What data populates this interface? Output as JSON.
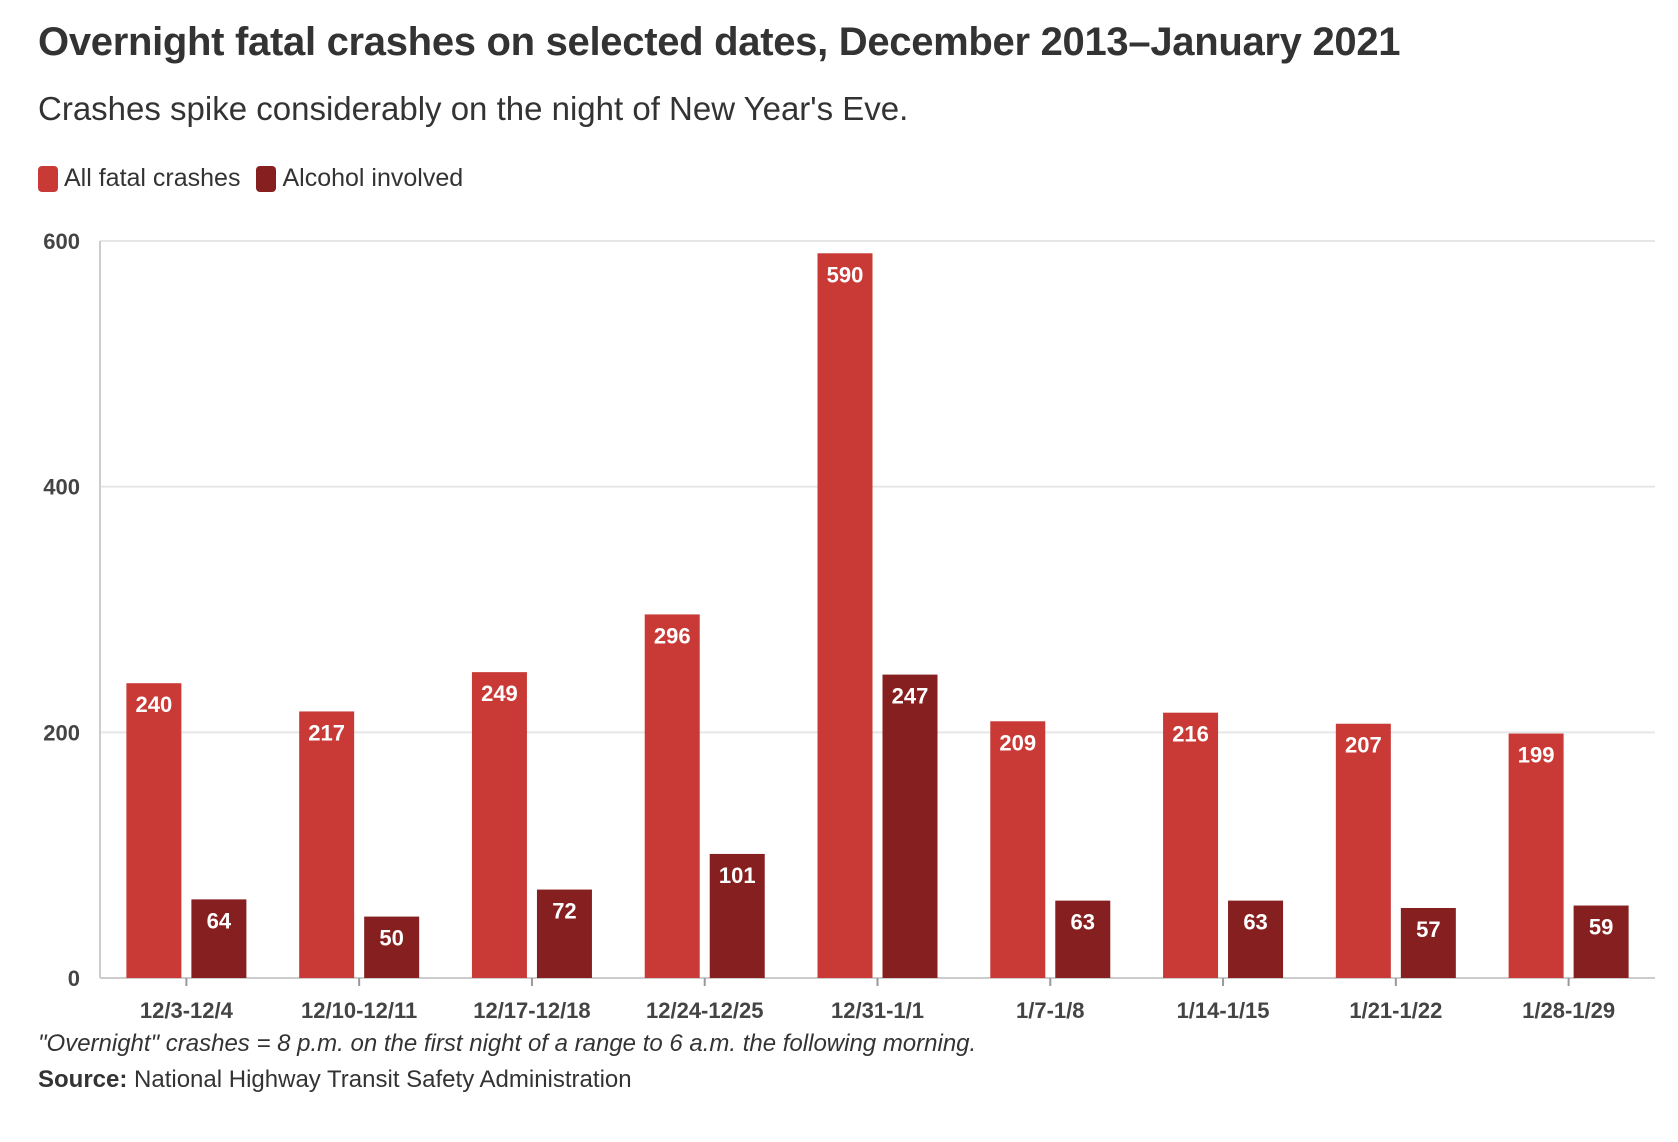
{
  "header": {
    "title": "Overnight fatal crashes on selected dates, December 2013–January 2021",
    "subtitle": "Crashes spike considerably on the night of New Year's Eve."
  },
  "legend": {
    "items": [
      {
        "label": "All fatal crashes",
        "color": "#c93a37"
      },
      {
        "label": "Alcohol involved",
        "color": "#861f1f"
      }
    ]
  },
  "footer": {
    "note": "\"Overnight\" crashes = 8 p.m. on the first night of a range to 6 a.m. the following morning.",
    "source_label": "Source:",
    "source_text": " National Highway Transit Safety Administration"
  },
  "chart_data": {
    "type": "bar",
    "title": "Overnight fatal crashes on selected dates, December 2013–January 2021",
    "subtitle": "Crashes spike considerably on the night of New Year's Eve.",
    "xlabel": "",
    "ylabel": "",
    "ylim": [
      0,
      600
    ],
    "yticks": [
      0,
      200,
      400,
      600
    ],
    "grid": true,
    "legend_position": "top-left",
    "categories": [
      "12/3-12/4",
      "12/10-12/11",
      "12/17-12/18",
      "12/24-12/25",
      "12/31-1/1",
      "1/7-1/8",
      "1/14-1/15",
      "1/21-1/22",
      "1/28-1/29"
    ],
    "series": [
      {
        "name": "All fatal crashes",
        "color": "#c93a37",
        "values": [
          240,
          217,
          249,
          296,
          590,
          209,
          216,
          207,
          199
        ]
      },
      {
        "name": "Alcohol involved",
        "color": "#861f1f",
        "values": [
          64,
          50,
          72,
          101,
          247,
          63,
          63,
          57,
          59
        ]
      }
    ]
  }
}
